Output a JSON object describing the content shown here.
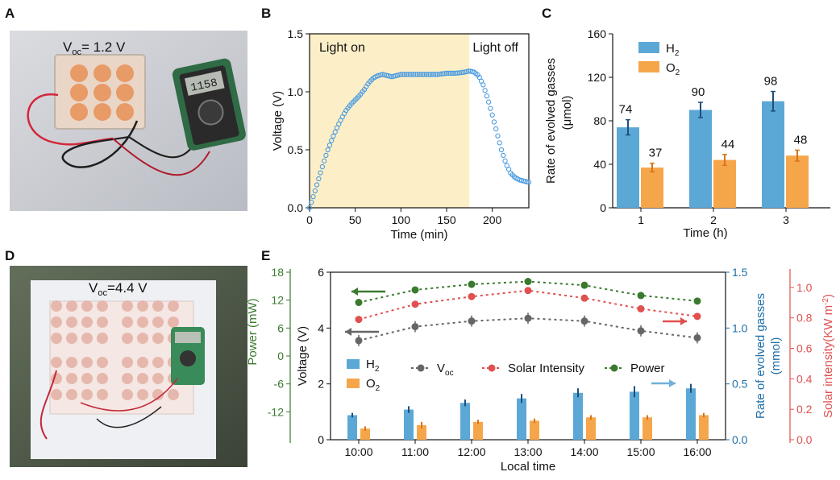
{
  "panels": {
    "a": {
      "letter": "A",
      "photo_label": "V",
      "photo_label_sub": "oc",
      "photo_label_rest": "= 1.2 V",
      "meter_reading": "1158"
    },
    "d": {
      "letter": "D",
      "photo_label": "V",
      "photo_label_sub": "oc",
      "photo_label_rest": "=4.4 V"
    },
    "b": {
      "letter": "B"
    },
    "c": {
      "letter": "C"
    },
    "e": {
      "letter": "E"
    }
  },
  "colors": {
    "h2": "#5ba8d6",
    "o2": "#f5a64a",
    "voc": "#666666",
    "solar": "#e05050",
    "power": "#3a7a2e",
    "light_on_bg": "#fcefc8",
    "line_b": "#4a9be0",
    "right_axis1": "#1f6fa8",
    "right_axis2": "#e05050",
    "left_axis_power": "#3a7a2e"
  },
  "chart_data": [
    {
      "id": "B",
      "type": "line",
      "xlabel": "Time (min)",
      "ylabel": "Voltage (V)",
      "xlim": [
        0,
        240
      ],
      "ylim": [
        0,
        1.5
      ],
      "xticks": [
        "0",
        "50",
        "100",
        "150",
        "200"
      ],
      "yticks": [
        "0.0",
        "0.5",
        "1.0",
        "1.5"
      ],
      "annotations": [
        "Light on",
        "Light off"
      ],
      "shaded_region": [
        0,
        175
      ],
      "series": [
        {
          "x": [
            0,
            5,
            10,
            15,
            20,
            25,
            30,
            35,
            40,
            45,
            50,
            55,
            60,
            65,
            70,
            75,
            80,
            85,
            90,
            95,
            100,
            110,
            120,
            130,
            140,
            150,
            160,
            170,
            175,
            180,
            185,
            190,
            195,
            200,
            205,
            210,
            215,
            220,
            225,
            230,
            235,
            240
          ],
          "y": [
            0.0,
            0.12,
            0.25,
            0.38,
            0.5,
            0.6,
            0.69,
            0.77,
            0.84,
            0.89,
            0.93,
            0.97,
            1.02,
            1.08,
            1.12,
            1.14,
            1.15,
            1.14,
            1.13,
            1.14,
            1.15,
            1.15,
            1.15,
            1.15,
            1.15,
            1.16,
            1.16,
            1.17,
            1.18,
            1.17,
            1.14,
            1.06,
            0.94,
            0.8,
            0.65,
            0.5,
            0.38,
            0.3,
            0.26,
            0.24,
            0.23,
            0.22
          ]
        }
      ]
    },
    {
      "id": "C",
      "type": "bar",
      "xlabel": "Time (h)",
      "ylabel": "Rate of evolved gasses",
      "ylabel2": "(μmol)",
      "categories": [
        "1",
        "2",
        "3"
      ],
      "ylim": [
        0,
        160
      ],
      "yticks": [
        "0",
        "40",
        "80",
        "120",
        "160"
      ],
      "legend": [
        {
          "name": "H",
          "sub": "2"
        },
        {
          "name": "O",
          "sub": "2"
        }
      ],
      "series": [
        {
          "name": "H2",
          "values": [
            74,
            90,
            98
          ],
          "errors": [
            7,
            7,
            9
          ],
          "labels": [
            "74",
            "90",
            "98"
          ]
        },
        {
          "name": "O2",
          "values": [
            37,
            44,
            48
          ],
          "errors": [
            4,
            5,
            5
          ],
          "labels": [
            "37",
            "44",
            "48"
          ]
        }
      ]
    },
    {
      "id": "E",
      "type": "bar",
      "xlabel": "Local time",
      "categories": [
        "10:00",
        "11:00",
        "12:00",
        "13:00",
        "14:00",
        "15:00",
        "16:00"
      ],
      "left_axis_voltage": {
        "label": "Voltage (V)",
        "ylim": [
          0,
          6
        ],
        "ticks": [
          "0",
          "2",
          "4",
          "6"
        ]
      },
      "left_axis_power": {
        "label": "Power (mW)",
        "ylim": [
          -18,
          18
        ],
        "ticks": [
          "-12",
          "-6",
          "0",
          "6",
          "12",
          "18"
        ]
      },
      "right_axis_gas": {
        "label": "Rate of evolved gasses",
        "label2": "(mmol)",
        "ylim": [
          0,
          1.5
        ],
        "ticks": [
          "0.0",
          "0.5",
          "1.0",
          "1.5"
        ]
      },
      "right_axis_solar": {
        "label": "Solar intensity(KW m",
        "label_sup": "-2",
        "label_end": ")",
        "ylim": [
          0,
          1.1
        ],
        "ticks": [
          "0.0",
          "0.2",
          "0.4",
          "0.6",
          "0.8",
          "1.0"
        ]
      },
      "legend": [
        {
          "name": "H",
          "sub": "2"
        },
        {
          "name": "O",
          "sub": "2"
        },
        {
          "name": "V",
          "sub": "oc"
        },
        {
          "name": "Solar Intensity",
          "sub": ""
        },
        {
          "name": "Power",
          "sub": ""
        }
      ],
      "series": [
        {
          "name": "H2",
          "axis": "gas",
          "values": [
            0.22,
            0.27,
            0.33,
            0.37,
            0.42,
            0.43,
            0.46
          ],
          "errors": [
            0.02,
            0.03,
            0.03,
            0.04,
            0.04,
            0.05,
            0.04
          ]
        },
        {
          "name": "O2",
          "axis": "gas",
          "values": [
            0.1,
            0.13,
            0.16,
            0.17,
            0.2,
            0.2,
            0.22
          ],
          "errors": [
            0.02,
            0.03,
            0.02,
            0.02,
            0.02,
            0.02,
            0.02
          ]
        },
        {
          "name": "Voc",
          "axis": "voltage",
          "values": [
            3.55,
            4.05,
            4.25,
            4.35,
            4.25,
            3.9,
            3.65
          ],
          "errors": [
            0.2,
            0.2,
            0.2,
            0.2,
            0.2,
            0.2,
            0.2
          ]
        },
        {
          "name": "Solar Intensity",
          "axis": "solar",
          "values": [
            0.79,
            0.89,
            0.94,
            0.98,
            0.93,
            0.86,
            0.81
          ]
        },
        {
          "name": "Power",
          "axis": "power",
          "values": [
            11.5,
            14.2,
            15.4,
            16.0,
            15.2,
            13.0,
            11.8
          ]
        }
      ]
    }
  ]
}
